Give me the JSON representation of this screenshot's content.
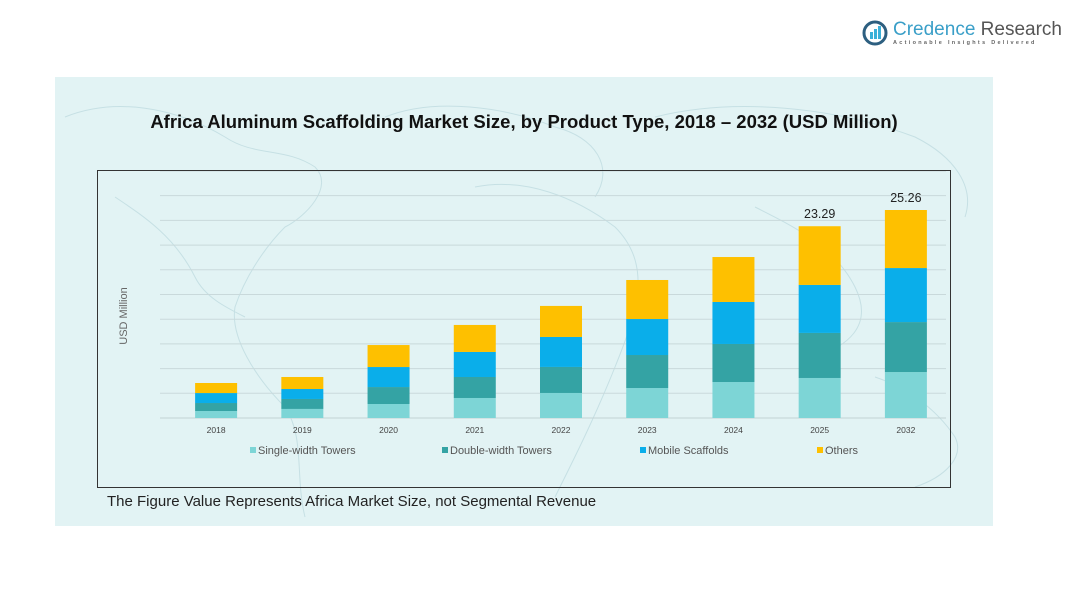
{
  "brand": {
    "name_part1": "Credence",
    "name_part2": " Research",
    "tagline": "Actionable Insights Delivered"
  },
  "footnote": "The Figure Value Represents Africa Market Size, not Segmental Revenue",
  "colors": {
    "panel_bg": "#e2f3f4",
    "single_width": "#7dd5d6",
    "double_width": "#34a3a4",
    "mobile": "#0aaeea",
    "others": "#fec000"
  },
  "chart_data": {
    "type": "bar",
    "stacked": true,
    "title": "Africa Aluminum Scaffolding Market Size, by Product Type, 2018 – 2032 (USD Million)",
    "xlabel": "",
    "ylabel": "USD Million",
    "categories": [
      "2018",
      "2019",
      "2020",
      "2021",
      "2022",
      "2023",
      "2024",
      "2025",
      "2032"
    ],
    "ylim": [
      0,
      30
    ],
    "grid": true,
    "legend_position": "bottom",
    "series": [
      {
        "name": "Single-width Towers",
        "color": "#7dd5d6",
        "values": [
          0.85,
          1.1,
          1.7,
          2.43,
          3.04,
          3.64,
          4.37,
          4.86,
          5.58
        ]
      },
      {
        "name": "Double-width Towers",
        "color": "#34a3a4",
        "values": [
          0.97,
          1.21,
          2.06,
          2.55,
          3.16,
          4.01,
          4.62,
          5.47,
          6.07
        ]
      },
      {
        "name": "Mobile Scaffolds",
        "color": "#0aaeea",
        "values": [
          1.21,
          1.21,
          2.43,
          3.04,
          3.64,
          4.37,
          5.1,
          5.83,
          6.56
        ]
      },
      {
        "name": "Others",
        "color": "#fec000",
        "values": [
          1.22,
          1.46,
          2.67,
          3.28,
          3.77,
          4.74,
          5.46,
          7.13,
          7.05
        ]
      }
    ],
    "totals": [
      4.25,
      4.98,
      8.86,
      11.3,
      13.61,
      16.76,
      19.55,
      23.29,
      25.26
    ],
    "data_labels": [
      {
        "category": "2025",
        "text": "23.29"
      },
      {
        "category": "2032",
        "text": "25.26"
      }
    ]
  }
}
